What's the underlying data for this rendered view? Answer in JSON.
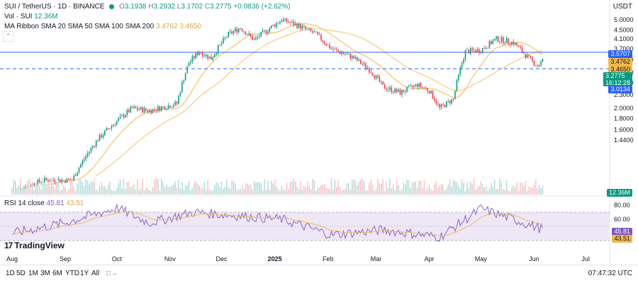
{
  "header": {
    "symbol": "SUI / TetherUS · 1D · BINANCE",
    "o_label": "O",
    "o_val": "3.1938",
    "h_label": "H",
    "h_val": "3.2932",
    "l_label": "L",
    "l_val": "3.1702",
    "c_label": "C",
    "c_val": "3.2775",
    "change": "+0.0836 (+2.62%)",
    "volume_label": "Vol · SUI",
    "volume_val": "12.36M",
    "ma_label": "MA Ribbon SMA 20 SMA 50 SMA 100 SMA 200",
    "ma_val1": "3.4762",
    "ma_val2": "3.4650",
    "currency": "USDT",
    "collapse_icon": "chevron-up-icon"
  },
  "rsi": {
    "label": "RSI 14 close",
    "val1": "45.81",
    "val2": "43.51",
    "ticks": [
      "80.00",
      "60.00",
      "40.00"
    ],
    "tag1": "45.81",
    "tag2": "43.51"
  },
  "price_tags": {
    "t1": "3.5707",
    "t2": "3.4762",
    "t3": "3.4650",
    "t4": "3.2775",
    "t4_time": "16:12:28",
    "t5": "3.0134",
    "vol_tag": "12.36M"
  },
  "logo_text": "TradingView",
  "bottom_bar": {
    "ranges": [
      "1D",
      "5D",
      "1M",
      "3M",
      "6M",
      "YTD",
      "1Y",
      "All"
    ],
    "calendar_icon": "calendar-icon",
    "time": "07:47:32 UTC"
  },
  "colors": {
    "up": "#089981",
    "down": "#f23645",
    "ma": "#f2b84b",
    "rsi_line": "#7e57c2",
    "rsi_band": "#ede7f6",
    "hline": "#2962ff"
  },
  "chart_data": {
    "type": "candlestick",
    "x_ticks": [
      "Aug",
      "Sep",
      "Oct",
      "Nov",
      "Dec",
      "2025",
      "Feb",
      "Mar",
      "Apr",
      "May",
      "Jun",
      "Jul"
    ],
    "y_ticks": [
      "5.0000",
      "4.5000",
      "4.1000",
      "3.7000",
      "3.3000",
      "2.9000",
      "2.6000",
      "2.3000",
      "2.0000",
      "1.8000",
      "1.6000",
      "1.4400"
    ],
    "horizontal_lines": [
      {
        "price": 3.57,
        "style": "solid"
      },
      {
        "price": 3.0134,
        "style": "dashed"
      }
    ],
    "price_anchors": [
      [
        "2024-08-01",
        0.85
      ],
      [
        "2024-08-20",
        0.95
      ],
      [
        "2024-09-05",
        0.95
      ],
      [
        "2024-09-20",
        1.45
      ],
      [
        "2024-10-01",
        1.75
      ],
      [
        "2024-10-10",
        2.0
      ],
      [
        "2024-10-20",
        1.95
      ],
      [
        "2024-11-05",
        2.1
      ],
      [
        "2024-11-12",
        3.2
      ],
      [
        "2024-11-18",
        3.6
      ],
      [
        "2024-11-25",
        3.35
      ],
      [
        "2024-12-05",
        4.3
      ],
      [
        "2024-12-12",
        4.6
      ],
      [
        "2024-12-20",
        4.05
      ],
      [
        "2025-01-05",
        5.0
      ],
      [
        "2025-01-15",
        4.7
      ],
      [
        "2025-01-25",
        4.3
      ],
      [
        "2025-02-03",
        3.7
      ],
      [
        "2025-02-15",
        3.4
      ],
      [
        "2025-02-25",
        3.0
      ],
      [
        "2025-03-05",
        2.5
      ],
      [
        "2025-03-15",
        2.35
      ],
      [
        "2025-03-25",
        2.55
      ],
      [
        "2025-04-01",
        2.4
      ],
      [
        "2025-04-07",
        2.0
      ],
      [
        "2025-04-15",
        2.2
      ],
      [
        "2025-04-22",
        3.6
      ],
      [
        "2025-05-01",
        3.65
      ],
      [
        "2025-05-10",
        4.1
      ],
      [
        "2025-05-20",
        3.95
      ],
      [
        "2025-05-28",
        3.4
      ],
      [
        "2025-06-03",
        3.1
      ],
      [
        "2025-06-06",
        3.2775
      ]
    ],
    "rsi_anchors": [
      [
        "2024-08-01",
        40
      ],
      [
        "2024-09-01",
        55
      ],
      [
        "2024-10-01",
        76
      ],
      [
        "2024-10-20",
        55
      ],
      [
        "2024-11-15",
        70
      ],
      [
        "2024-12-10",
        65
      ],
      [
        "2025-01-05",
        60
      ],
      [
        "2025-02-03",
        38
      ],
      [
        "2025-03-05",
        45
      ],
      [
        "2025-04-07",
        35
      ],
      [
        "2025-05-01",
        75
      ],
      [
        "2025-05-20",
        60
      ],
      [
        "2025-06-06",
        45.81
      ]
    ],
    "volume_level": 0.3
  }
}
